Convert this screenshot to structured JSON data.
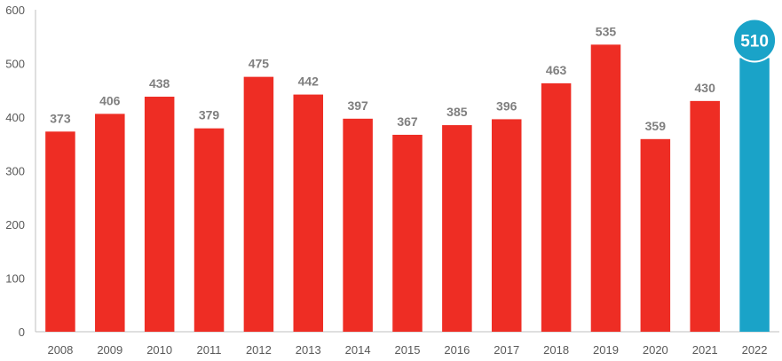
{
  "chart_data": {
    "type": "bar",
    "categories": [
      "2008",
      "2009",
      "2010",
      "2011",
      "2012",
      "2013",
      "2014",
      "2015",
      "2016",
      "2017",
      "2018",
      "2019",
      "2020",
      "2021",
      "2022"
    ],
    "values": [
      373,
      406,
      438,
      379,
      475,
      442,
      397,
      367,
      385,
      396,
      463,
      535,
      359,
      430,
      510
    ],
    "title": "",
    "xlabel": "",
    "ylabel": "",
    "ylim": [
      0,
      600
    ],
    "yticks": [
      0,
      100,
      200,
      300,
      400,
      500,
      600
    ],
    "grid": false,
    "highlight_category": "2022",
    "colors": {
      "bar": "#ee2d24",
      "highlight": "#1aa3c8",
      "axis": "#bfbfbf",
      "tick_text": "#595959",
      "data_label": "#7f7f7f"
    }
  }
}
